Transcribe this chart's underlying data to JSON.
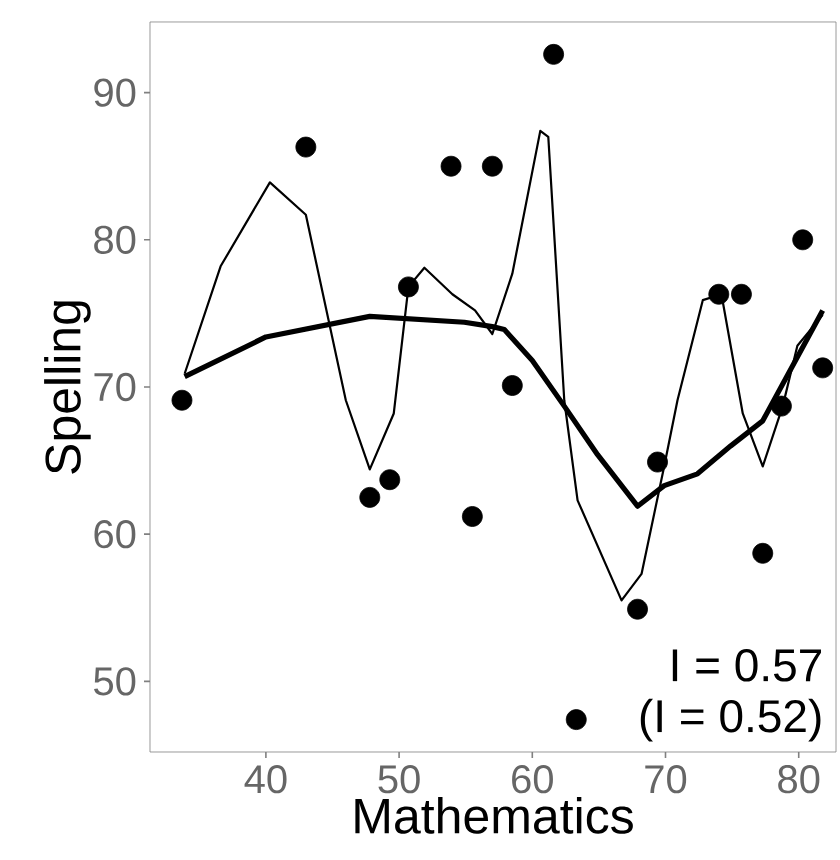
{
  "chart_data": {
    "type": "scatter",
    "xlabel": "Mathematics",
    "ylabel": "Spelling",
    "xlim": [
      31.3,
      82.8
    ],
    "ylim": [
      45.2,
      94.8
    ],
    "xticks": [
      40,
      50,
      60,
      70,
      80
    ],
    "yticks": [
      50,
      60,
      70,
      80,
      90
    ],
    "grid": false,
    "series": [
      {
        "marker": "circle",
        "color": "#000000",
        "x": [
          33.7,
          43.0,
          47.8,
          49.3,
          50.7,
          53.9,
          57.0,
          55.5,
          58.5,
          61.6,
          67.9,
          69.4,
          63.3,
          74.0,
          75.7,
          78.7,
          77.3,
          80.3,
          81.8
        ],
        "values": [
          69.1,
          86.3,
          62.5,
          63.7,
          76.8,
          85.0,
          85.0,
          61.2,
          70.1,
          92.6,
          54.9,
          64.9,
          47.4,
          76.3,
          76.3,
          68.7,
          58.7,
          80.0,
          71.3
        ]
      },
      {
        "type": "line",
        "marker": "none",
        "color": "#000000",
        "x": [
          33.9,
          40.0,
          47.8,
          54.9,
          57.0,
          57.9,
          60.0,
          62.4,
          64.9,
          67.9,
          69.9,
          72.4,
          74.9,
          77.3,
          81.8
        ],
        "values": [
          70.7,
          73.4,
          74.8,
          74.4,
          74.1,
          73.9,
          71.8,
          68.7,
          65.4,
          61.9,
          63.3,
          64.1,
          66.0,
          67.7,
          75.2
        ]
      },
      {
        "type": "line",
        "marker": "none",
        "color": "#000000",
        "x": [
          33.9,
          36.6,
          40.3,
          43.0,
          46.0,
          47.8,
          49.6,
          50.7,
          51.9,
          54.0,
          55.7,
          57.0,
          58.5,
          60.6,
          61.2,
          62.4,
          63.4,
          66.7,
          68.2,
          69.9,
          70.9,
          72.8,
          74.2,
          75.8,
          77.3,
          78.8,
          79.9,
          81.8
        ],
        "values": [
          70.9,
          78.2,
          83.9,
          81.7,
          69.1,
          64.4,
          68.2,
          76.8,
          78.1,
          76.3,
          75.2,
          73.6,
          77.7,
          87.4,
          87.0,
          69.1,
          62.3,
          55.5,
          57.3,
          64.6,
          69.1,
          75.9,
          76.3,
          68.2,
          64.6,
          68.7,
          72.8,
          74.9
        ]
      }
    ],
    "annotations": [
      "I = 0.57",
      "(I = 0.52)"
    ]
  }
}
